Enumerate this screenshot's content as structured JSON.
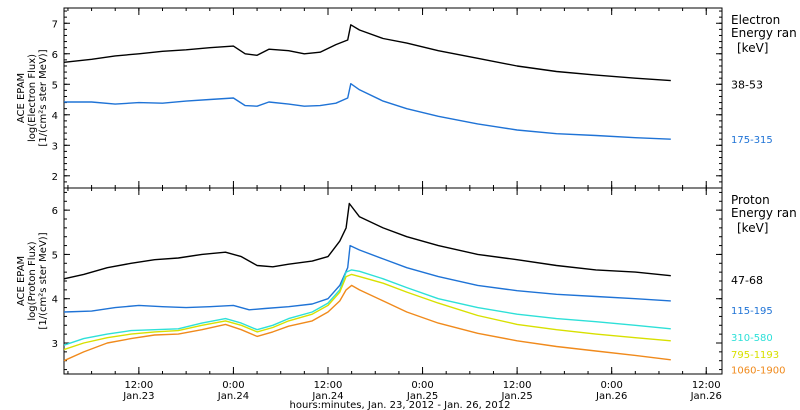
{
  "figure": {
    "xlabel": "hours:minutes, Jan. 23, 2012 - Jan. 26, 2012",
    "x_ticks": [
      {
        "t": 12,
        "top": "12:00",
        "bottom": "Jan.23"
      },
      {
        "t": 24,
        "top": "0:00",
        "bottom": "Jan.24"
      },
      {
        "t": 36,
        "top": "12:00",
        "bottom": "Jan.24"
      },
      {
        "t": 48,
        "top": "0:00",
        "bottom": "Jan.25"
      },
      {
        "t": 60,
        "top": "12:00",
        "bottom": "Jan.25"
      },
      {
        "t": 72,
        "top": "0:00",
        "bottom": "Jan.26"
      },
      {
        "t": 84,
        "top": "12:00",
        "bottom": "Jan.26"
      }
    ]
  },
  "chart_data": [
    {
      "type": "line",
      "ylabel": [
        "ACE EPAM",
        "log(Electron Flux)",
        "[1/(cm²s ster MeV)]"
      ],
      "ylim": [
        1.6,
        7.5
      ],
      "yticks": [
        2,
        3,
        4,
        5,
        6,
        7
      ],
      "xlim": [
        2.5,
        86
      ],
      "legend_title": [
        "Electron",
        "Energy ran"
      ],
      "legend_unit": "[keV]",
      "series": [
        {
          "name": "38-53",
          "color": "#000000",
          "label_y": 5.0,
          "points": [
            [
              2.5,
              5.72
            ],
            [
              6,
              5.82
            ],
            [
              9,
              5.93
            ],
            [
              12,
              6.0
            ],
            [
              15,
              6.08
            ],
            [
              18,
              6.13
            ],
            [
              21,
              6.2
            ],
            [
              24,
              6.25
            ],
            [
              25.5,
              6.0
            ],
            [
              27,
              5.95
            ],
            [
              28.5,
              6.15
            ],
            [
              31,
              6.1
            ],
            [
              33,
              6.0
            ],
            [
              35,
              6.05
            ],
            [
              37,
              6.3
            ],
            [
              38.5,
              6.45
            ],
            [
              38.9,
              6.95
            ],
            [
              40,
              6.78
            ],
            [
              43,
              6.5
            ],
            [
              46,
              6.35
            ],
            [
              50,
              6.1
            ],
            [
              55,
              5.85
            ],
            [
              60,
              5.6
            ],
            [
              65,
              5.42
            ],
            [
              70,
              5.3
            ],
            [
              75,
              5.2
            ],
            [
              79.5,
              5.12
            ]
          ]
        },
        {
          "name": "175-315",
          "color": "#1f73d6",
          "label_y": 3.2,
          "points": [
            [
              2.5,
              4.42
            ],
            [
              6,
              4.42
            ],
            [
              9,
              4.35
            ],
            [
              12,
              4.4
            ],
            [
              15,
              4.38
            ],
            [
              18,
              4.45
            ],
            [
              21,
              4.5
            ],
            [
              24,
              4.55
            ],
            [
              25.5,
              4.3
            ],
            [
              27,
              4.28
            ],
            [
              28.5,
              4.42
            ],
            [
              31,
              4.35
            ],
            [
              33,
              4.28
            ],
            [
              35,
              4.3
            ],
            [
              37,
              4.38
            ],
            [
              38.5,
              4.55
            ],
            [
              38.9,
              5.02
            ],
            [
              40,
              4.82
            ],
            [
              43,
              4.45
            ],
            [
              46,
              4.2
            ],
            [
              50,
              3.95
            ],
            [
              55,
              3.7
            ],
            [
              60,
              3.5
            ],
            [
              65,
              3.38
            ],
            [
              70,
              3.32
            ],
            [
              75,
              3.25
            ],
            [
              79.5,
              3.2
            ]
          ]
        }
      ]
    },
    {
      "type": "line",
      "ylabel": [
        "ACE EPAM",
        "log(Proton Flux)",
        "[1/(cm²s ster MeV)]"
      ],
      "ylim": [
        2.3,
        6.5
      ],
      "yticks": [
        3,
        4,
        5,
        6
      ],
      "xlim": [
        2.5,
        86
      ],
      "legend_title": [
        "Proton",
        "Energy ran"
      ],
      "legend_unit": "[keV]",
      "series": [
        {
          "name": "47-68",
          "color": "#000000",
          "label_y": 4.42,
          "points": [
            [
              2.5,
              4.45
            ],
            [
              5,
              4.55
            ],
            [
              8,
              4.7
            ],
            [
              11,
              4.8
            ],
            [
              14,
              4.88
            ],
            [
              17,
              4.92
            ],
            [
              20,
              5.0
            ],
            [
              23,
              5.05
            ],
            [
              25,
              4.95
            ],
            [
              27,
              4.75
            ],
            [
              29,
              4.72
            ],
            [
              31,
              4.78
            ],
            [
              34,
              4.85
            ],
            [
              36,
              4.95
            ],
            [
              37.5,
              5.3
            ],
            [
              38.3,
              5.6
            ],
            [
              38.7,
              6.15
            ],
            [
              40,
              5.85
            ],
            [
              43,
              5.6
            ],
            [
              46,
              5.4
            ],
            [
              50,
              5.2
            ],
            [
              55,
              5.0
            ],
            [
              60,
              4.88
            ],
            [
              65,
              4.75
            ],
            [
              70,
              4.65
            ],
            [
              75,
              4.6
            ],
            [
              79.5,
              4.52
            ]
          ]
        },
        {
          "name": "115-195",
          "color": "#1f73d6",
          "label_y": 3.74,
          "points": [
            [
              2.5,
              3.7
            ],
            [
              6,
              3.72
            ],
            [
              9,
              3.8
            ],
            [
              12,
              3.85
            ],
            [
              15,
              3.82
            ],
            [
              18,
              3.8
            ],
            [
              21,
              3.82
            ],
            [
              24,
              3.85
            ],
            [
              26,
              3.75
            ],
            [
              28,
              3.78
            ],
            [
              31,
              3.82
            ],
            [
              34,
              3.88
            ],
            [
              36,
              4.0
            ],
            [
              37.5,
              4.3
            ],
            [
              38.5,
              4.7
            ],
            [
              38.8,
              5.2
            ],
            [
              40,
              5.1
            ],
            [
              43,
              4.9
            ],
            [
              46,
              4.7
            ],
            [
              50,
              4.5
            ],
            [
              55,
              4.3
            ],
            [
              60,
              4.18
            ],
            [
              65,
              4.1
            ],
            [
              70,
              4.05
            ],
            [
              75,
              4.0
            ],
            [
              79.5,
              3.95
            ]
          ]
        },
        {
          "name": "310-580",
          "color": "#2ee0d8",
          "label_y": 3.13,
          "points": [
            [
              2.5,
              2.95
            ],
            [
              5,
              3.1
            ],
            [
              8,
              3.2
            ],
            [
              11,
              3.28
            ],
            [
              14,
              3.3
            ],
            [
              17,
              3.32
            ],
            [
              20,
              3.45
            ],
            [
              23,
              3.55
            ],
            [
              25,
              3.45
            ],
            [
              27,
              3.3
            ],
            [
              29,
              3.4
            ],
            [
              31,
              3.55
            ],
            [
              34,
              3.7
            ],
            [
              36,
              3.9
            ],
            [
              37.5,
              4.2
            ],
            [
              38.3,
              4.6
            ],
            [
              39,
              4.65
            ],
            [
              40,
              4.62
            ],
            [
              43,
              4.45
            ],
            [
              46,
              4.25
            ],
            [
              50,
              4.0
            ],
            [
              55,
              3.8
            ],
            [
              60,
              3.65
            ],
            [
              65,
              3.55
            ],
            [
              70,
              3.48
            ],
            [
              75,
              3.4
            ],
            [
              79.5,
              3.32
            ]
          ]
        },
        {
          "name": "795-1193",
          "color": "#d8e000",
          "label_y": 2.75,
          "points": [
            [
              2.5,
              2.85
            ],
            [
              5,
              3.0
            ],
            [
              8,
              3.12
            ],
            [
              11,
              3.2
            ],
            [
              14,
              3.25
            ],
            [
              17,
              3.28
            ],
            [
              20,
              3.4
            ],
            [
              23,
              3.5
            ],
            [
              25,
              3.4
            ],
            [
              27,
              3.25
            ],
            [
              29,
              3.35
            ],
            [
              31,
              3.5
            ],
            [
              34,
              3.65
            ],
            [
              36,
              3.85
            ],
            [
              37.5,
              4.15
            ],
            [
              38.3,
              4.5
            ],
            [
              39,
              4.55
            ],
            [
              40,
              4.5
            ],
            [
              43,
              4.35
            ],
            [
              46,
              4.15
            ],
            [
              50,
              3.9
            ],
            [
              55,
              3.62
            ],
            [
              60,
              3.42
            ],
            [
              65,
              3.3
            ],
            [
              70,
              3.2
            ],
            [
              75,
              3.12
            ],
            [
              79.5,
              3.05
            ]
          ]
        },
        {
          "name": "1060-1900",
          "color": "#f08a1c",
          "label_y": 2.4,
          "points": [
            [
              2.5,
              2.6
            ],
            [
              5,
              2.8
            ],
            [
              8,
              3.0
            ],
            [
              11,
              3.1
            ],
            [
              14,
              3.18
            ],
            [
              17,
              3.2
            ],
            [
              20,
              3.3
            ],
            [
              23,
              3.42
            ],
            [
              25,
              3.3
            ],
            [
              27,
              3.15
            ],
            [
              29,
              3.25
            ],
            [
              31,
              3.38
            ],
            [
              34,
              3.5
            ],
            [
              36,
              3.7
            ],
            [
              37.5,
              3.95
            ],
            [
              38.3,
              4.2
            ],
            [
              39,
              4.3
            ],
            [
              40,
              4.2
            ],
            [
              43,
              3.95
            ],
            [
              46,
              3.7
            ],
            [
              50,
              3.45
            ],
            [
              55,
              3.22
            ],
            [
              60,
              3.05
            ],
            [
              65,
              2.92
            ],
            [
              70,
              2.82
            ],
            [
              75,
              2.72
            ],
            [
              79.5,
              2.62
            ]
          ]
        }
      ]
    }
  ]
}
